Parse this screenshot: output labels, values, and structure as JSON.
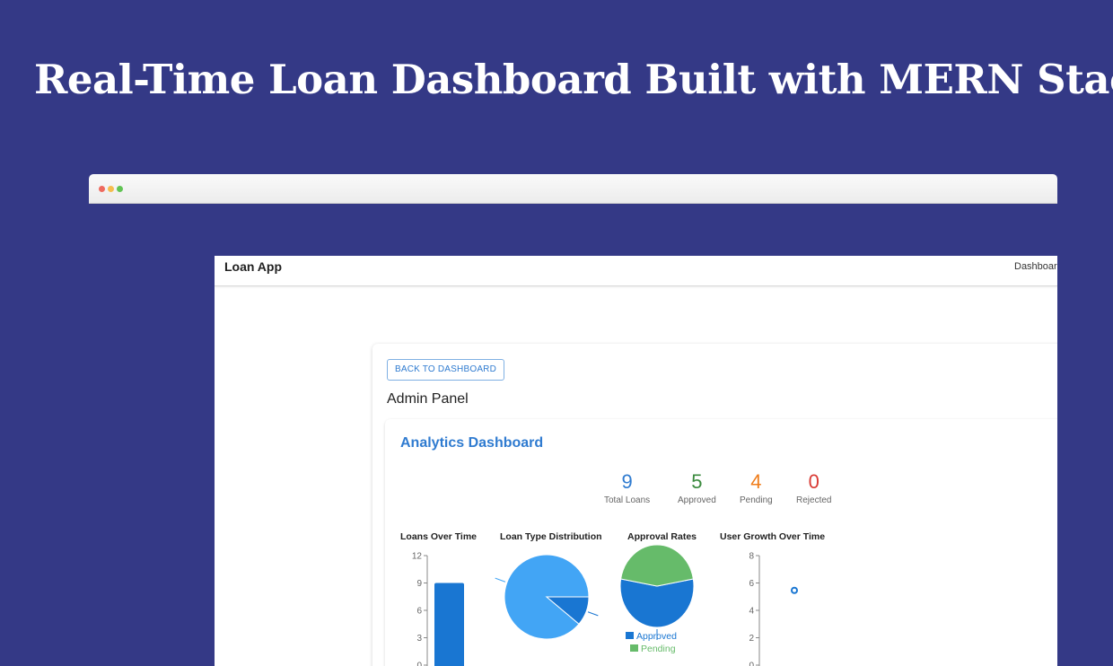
{
  "hero": {
    "title": "Real-Time Loan Dashboard Built with MERN Stack"
  },
  "app": {
    "brand": "Loan App",
    "nav_link": "Dashboar",
    "back_button": "BACK TO DASHBOARD",
    "panel_title": "Admin Panel",
    "dashboard_title": "Analytics Dashboard",
    "stats": [
      {
        "value": "9",
        "label": "Total Loans"
      },
      {
        "value": "5",
        "label": "Approved"
      },
      {
        "value": "4",
        "label": "Pending"
      },
      {
        "value": "0",
        "label": "Rejected"
      }
    ],
    "stat_colors": {
      "total": "#2f7bd0",
      "approved": "#3a8a3e",
      "pending": "#ef7d1b",
      "rejected": "#d93a34"
    }
  },
  "chart_data": [
    {
      "type": "bar",
      "title": "Loans Over Time",
      "yticks": [
        "12",
        "9",
        "6",
        "3",
        "0"
      ],
      "ylim": [
        0,
        12
      ],
      "values": [
        9
      ],
      "color": "#1976d2"
    },
    {
      "type": "pie",
      "title": "Loan Type Distribution",
      "slices": [
        {
          "value": 8,
          "color": "#42a5f5"
        },
        {
          "value": 1,
          "color": "#1976d2"
        }
      ]
    },
    {
      "type": "pie",
      "title": "Approval Rates",
      "slices": [
        {
          "name": "Approved",
          "value": 5,
          "color": "#1976d2"
        },
        {
          "name": "Pending",
          "value": 4,
          "color": "#66bb6a"
        }
      ],
      "legend": [
        "Approved",
        "Pending"
      ]
    },
    {
      "type": "scatter",
      "title": "User Growth Over Time",
      "yticks": [
        "8",
        "6",
        "4",
        "2",
        "0"
      ],
      "ylim": [
        0,
        8
      ],
      "values": [
        5
      ],
      "color": "#1976d2"
    }
  ]
}
